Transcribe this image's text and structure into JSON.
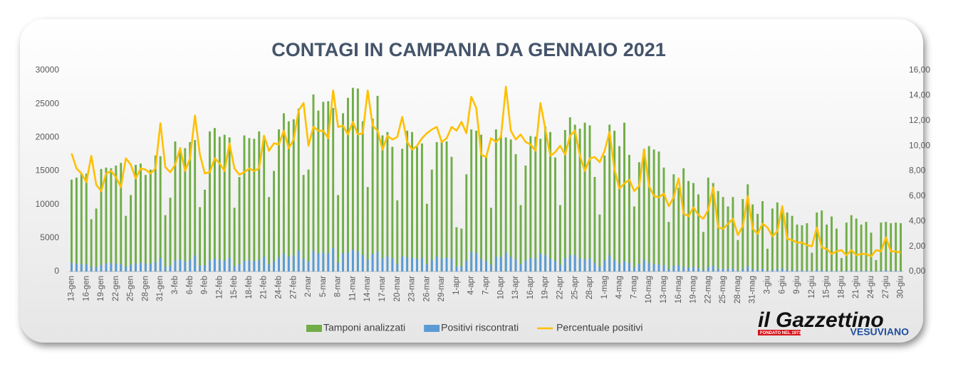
{
  "chart_data": {
    "type": "bar",
    "title": "CONTAGI IN CAMPANIA DA GENNAIO 2021",
    "categories": [
      "13-gen",
      null,
      null,
      "16-gen",
      null,
      null,
      "19-gen",
      null,
      null,
      "22-gen",
      null,
      null,
      "25-gen",
      null,
      null,
      "28-gen",
      null,
      null,
      "31-gen",
      null,
      null,
      "3-feb",
      null,
      null,
      "6-feb",
      null,
      null,
      "9-feb",
      null,
      null,
      "12-feb",
      null,
      null,
      "15-feb",
      null,
      null,
      "18-feb",
      null,
      null,
      "21-feb",
      null,
      null,
      "24-feb",
      null,
      null,
      "27-feb",
      null,
      null,
      "2-mar",
      null,
      null,
      "5-mar",
      null,
      null,
      "8-mar",
      null,
      null,
      "11-mar",
      null,
      null,
      "14-mar",
      null,
      null,
      "17-mar",
      null,
      null,
      "20-mar",
      null,
      null,
      "23-mar",
      null,
      null,
      "26-mar",
      null,
      null,
      "29-mar",
      null,
      null,
      "1-apr",
      null,
      null,
      "4-apr",
      null,
      null,
      "7-apr",
      null,
      null,
      "10-apr",
      null,
      null,
      "13-apr",
      null,
      null,
      "16-apr",
      null,
      null,
      "19-apr",
      null,
      null,
      "22-apr",
      null,
      null,
      "25-apr",
      null,
      null,
      "28-apr",
      null,
      null,
      "1-mag",
      null,
      null,
      "4-mag",
      null,
      null,
      "7-mag",
      null,
      null,
      "10-mag",
      null,
      null,
      "13-mag",
      null,
      null,
      "16-mag",
      null,
      null,
      "19-mag",
      null,
      null,
      "22-mag",
      null,
      null,
      "25-mag",
      null,
      null,
      "28-mag",
      null,
      null,
      "31-mag",
      null,
      null,
      "3-giu",
      null,
      null,
      "6-giu",
      null,
      null,
      "9-giu",
      null,
      null,
      "12-giu",
      null,
      null,
      "15-giu",
      null,
      null,
      "18-giu",
      null,
      null,
      "21-giu",
      null,
      null,
      "24-giu",
      null,
      null,
      "27-giu",
      null,
      null,
      "30-giu"
    ],
    "series": [
      {
        "name": "Tamponi analizzati",
        "color": "#70ad47",
        "values": [
          13700,
          14000,
          14600,
          14600,
          7800,
          9400,
          15300,
          15500,
          15400,
          15800,
          16200,
          8300,
          11400,
          15900,
          16100,
          14400,
          15200,
          17300,
          17200,
          8400,
          11000,
          19400,
          18500,
          18400,
          19300,
          19600,
          9600,
          12200,
          20900,
          21400,
          20100,
          20400,
          20000,
          9500,
          14100,
          20300,
          19900,
          19800,
          20900,
          20200,
          11100,
          15000,
          21200,
          23600,
          22400,
          22700,
          24300,
          14400,
          15200,
          26400,
          24000,
          25300,
          25400,
          24400,
          11400,
          23600,
          25900,
          27400,
          27300,
          22400,
          12600,
          22800,
          26200,
          20300,
          20800,
          18600,
          10600,
          18300,
          21000,
          20800,
          18600,
          19100,
          10100,
          15200,
          19300,
          19500,
          19400,
          17100,
          6600,
          6400,
          14500,
          21200,
          21000,
          20400,
          17100,
          9500,
          21200,
          20300,
          20000,
          19700,
          17500,
          9900,
          15800,
          20200,
          20100,
          19800,
          21600,
          20800,
          17000,
          9900,
          21100,
          23000,
          21900,
          21300,
          22200,
          21800,
          14100,
          8500,
          17300,
          21900,
          21000,
          18700,
          22200,
          17400,
          9700,
          16300,
          18300,
          18700,
          18200,
          17900,
          15500,
          7400,
          14500,
          12500,
          15400,
          13500,
          13200,
          11500,
          5900,
          14000,
          13200,
          12000,
          11100,
          9700,
          11100,
          4700,
          10800,
          13000,
          10000,
          8600,
          10500,
          3400,
          9400,
          10300,
          8900,
          8800,
          8300,
          7000,
          6900,
          7200,
          2800,
          8800,
          9100,
          7000,
          8200,
          6400,
          2000,
          7300,
          8400,
          7900,
          7000,
          7400,
          5800,
          1700,
          7300,
          7400,
          7200,
          7300,
          7200
        ]
      },
      {
        "name": "Positivi riscontrati",
        "color": "#5b9bd5",
        "values": [
          1290,
          1150,
          1140,
          1040,
          720,
          650,
          980,
          1210,
          1230,
          1190,
          1090,
          750,
          970,
          1180,
          1320,
          1170,
          1190,
          1420,
          2030,
          700,
          870,
          1650,
          1810,
          1470,
          1740,
          2430,
          890,
          950,
          1650,
          1930,
          1730,
          1630,
          2040,
          780,
          1090,
          1600,
          1630,
          1580,
          1710,
          2180,
          1070,
          1530,
          2140,
          2640,
          2200,
          2380,
          3110,
          1930,
          1520,
          3040,
          2690,
          2830,
          2690,
          3510,
          1310,
          2740,
          2820,
          3260,
          2980,
          2460,
          1810,
          2640,
          2930,
          1970,
          2250,
          1950,
          1130,
          2250,
          2160,
          2020,
          1860,
          2020,
          1110,
          1720,
          2220,
          2010,
          2060,
          1970,
          740,
          760,
          1600,
          2950,
          2730,
          1900,
          1560,
          1010,
          2180,
          2170,
          2800,
          2210,
          1840,
          1080,
          1630,
          2040,
          1930,
          2650,
          2440,
          1910,
          1620,
          990,
          1960,
          2480,
          2450,
          1960,
          1780,
          1960,
          1280,
          740,
          1660,
          2430,
          1700,
          1230,
          1550,
          1270,
          620,
          1110,
          1780,
          1270,
          1090,
          1060,
          960,
          380,
          860,
          930,
          710,
          590,
          670,
          520,
          250,
          690,
          880,
          420,
          380,
          370,
          470,
          140,
          390,
          780,
          340,
          260,
          400,
          120,
          260,
          330,
          460,
          230,
          210,
          160,
          160,
          150,
          60,
          310,
          170,
          130,
          110,
          100,
          30,
          90,
          140,
          100,
          100,
          100,
          70,
          30,
          120,
          200,
          120,
          120,
          110
        ]
      },
      {
        "name": "Percentuale positivi",
        "color": "#ffc000",
        "type": "line",
        "axis": "y2",
        "values": [
          9.4,
          8.2,
          7.8,
          7.1,
          9.2,
          6.9,
          6.4,
          7.8,
          8.0,
          7.5,
          6.7,
          9.0,
          8.5,
          7.4,
          8.2,
          8.1,
          7.8,
          8.2,
          11.8,
          8.3,
          7.9,
          8.5,
          9.8,
          8.0,
          9.0,
          12.4,
          9.3,
          7.8,
          7.9,
          9.0,
          8.6,
          8.0,
          10.2,
          8.2,
          7.7,
          7.9,
          8.2,
          8.0,
          8.2,
          10.8,
          9.6,
          10.2,
          10.1,
          11.2,
          9.8,
          10.5,
          12.8,
          13.4,
          10.0,
          11.5,
          11.2,
          11.2,
          10.6,
          14.4,
          11.5,
          11.6,
          10.9,
          11.9,
          10.9,
          11.0,
          14.4,
          11.6,
          11.2,
          9.7,
          10.8,
          10.5,
          10.7,
          12.3,
          10.3,
          9.7,
          10.0,
          10.6,
          11.0,
          11.3,
          11.5,
          10.3,
          10.6,
          11.5,
          11.2,
          11.9,
          11.0,
          13.9,
          13.0,
          9.3,
          9.1,
          10.6,
          10.3,
          10.7,
          14.7,
          11.2,
          10.5,
          10.9,
          10.3,
          10.1,
          9.6,
          13.4,
          11.3,
          9.2,
          9.5,
          10.0,
          9.3,
          10.8,
          11.2,
          9.2,
          8.0,
          9.0,
          9.1,
          8.7,
          9.6,
          11.1,
          8.1,
          6.6,
          7.0,
          7.3,
          6.4,
          6.8,
          9.7,
          6.8,
          6.0,
          5.9,
          6.2,
          5.2,
          5.9,
          7.4,
          4.6,
          4.4,
          5.1,
          4.5,
          4.2,
          4.9,
          6.7,
          3.5,
          3.4,
          3.8,
          4.2,
          2.9,
          3.6,
          6.0,
          3.4,
          3.0,
          3.8,
          3.5,
          2.8,
          3.2,
          5.2,
          2.6,
          2.5,
          2.3,
          2.3,
          2.1,
          2.0,
          3.5,
          1.9,
          1.8,
          1.4,
          1.6,
          1.7,
          1.3,
          1.7,
          1.3,
          1.4,
          1.4,
          1.2,
          1.7,
          1.6,
          2.7,
          1.6,
          1.6,
          1.5
        ]
      }
    ],
    "ylim": [
      0,
      30000
    ],
    "yticks": [
      0,
      5000,
      10000,
      15000,
      20000,
      25000,
      30000
    ],
    "y2lim": [
      0,
      16
    ],
    "y2ticks": [
      {
        "value": 0,
        "label": "0,00"
      },
      {
        "value": 2,
        "label": "2,00"
      },
      {
        "value": 4,
        "label": "4,00"
      },
      {
        "value": 6,
        "label": "6,00"
      },
      {
        "value": 8,
        "label": "8,00"
      },
      {
        "value": 10,
        "label": "10,00"
      },
      {
        "value": 12,
        "label": "12,00"
      },
      {
        "value": 14,
        "label": "14,00"
      },
      {
        "value": 16,
        "label": "16,00"
      }
    ],
    "legend": "bottom",
    "grid": false
  },
  "logo": {
    "name": "il Gazzettino",
    "subtitle": "VESUVIANO",
    "founded": "FONDATO NEL 1971"
  }
}
